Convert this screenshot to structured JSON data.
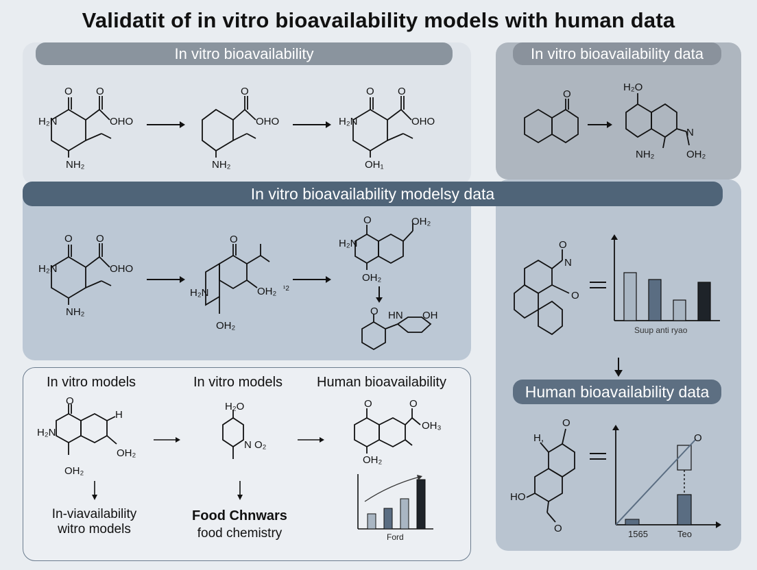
{
  "title": "Validatit of in vitro bioavailability models with human data",
  "panels": {
    "top_left": {
      "header": "In vitro bioavailability",
      "mol1": {
        "o1": "O",
        "o2": "O",
        "oho": "OHO",
        "h2n": "H₂N",
        "nh2": "NH₂"
      },
      "mol2": {
        "o": "O",
        "oho": "OHO",
        "nh2": "NH₂"
      },
      "mol3": {
        "o1": "O",
        "o2": "O",
        "oho": "OHO",
        "h2n": "H₂N",
        "oh": "OH₁"
      }
    },
    "top_right": {
      "header": "In vitro bioavailability data",
      "mol1": {
        "o": "O"
      },
      "mol2": {
        "h2o": "H₂O",
        "n": "N",
        "nh2": "NH₂",
        "oh2": "OH₂"
      }
    },
    "middle": {
      "header": "In vitro bioavailability modelsy data",
      "mol1": {
        "o1": "O",
        "o2": "O",
        "oho": "OHO",
        "h2n": "H₂N",
        "nh2": "NH₂"
      },
      "mol2": {
        "o": "O",
        "h2n": "H₂N",
        "oh2a": "OH₂",
        "sup": "¹2",
        "oh2b": "OH₂"
      },
      "mol3": {
        "o": "O",
        "oh2a": "OH₂",
        "h2n": "H₂N",
        "oh2b": "OH₂"
      },
      "mol4": {
        "o": "O",
        "hn": "HN",
        "oh": "OH"
      }
    },
    "right_middle": {
      "mol": {
        "o1": "O",
        "n": "N",
        "o2": "O"
      },
      "chart_caption": "Suup anti ryao"
    },
    "bottom_left": {
      "labels": [
        "In vitro models",
        "In vitro models",
        "Human bioavailability"
      ],
      "mol1": {
        "o": "O",
        "h2n": "H₂N",
        "h": "H",
        "oh2a": "OH₂",
        "oh2b": "OH₂"
      },
      "mol2": {
        "h2o": "H₂O",
        "no2": "N O₂"
      },
      "mol3": {
        "o1": "O",
        "o2": "O",
        "oh3": "OH₃",
        "oh2": "OH₂"
      },
      "bottom_label1_line1": "In-viavailability",
      "bottom_label1_line2": "witro models",
      "bottom_label2_line1": "Food Chnwars",
      "bottom_label2_line2": "food chemistry",
      "chart_caption": "Ford"
    },
    "bottom_right": {
      "header": "Human bioavailability data",
      "mol": {
        "h": "H,",
        "o1": "O",
        "ho": "HO",
        "o2": "O"
      },
      "chart_marker": "O",
      "x_labels": [
        "1565",
        "Teo"
      ]
    }
  },
  "colors": {
    "bar_light": "#a9b6c3",
    "bar_mid": "#5a6d82",
    "bar_dark": "#1e2329",
    "line": "#5a6d82"
  }
}
